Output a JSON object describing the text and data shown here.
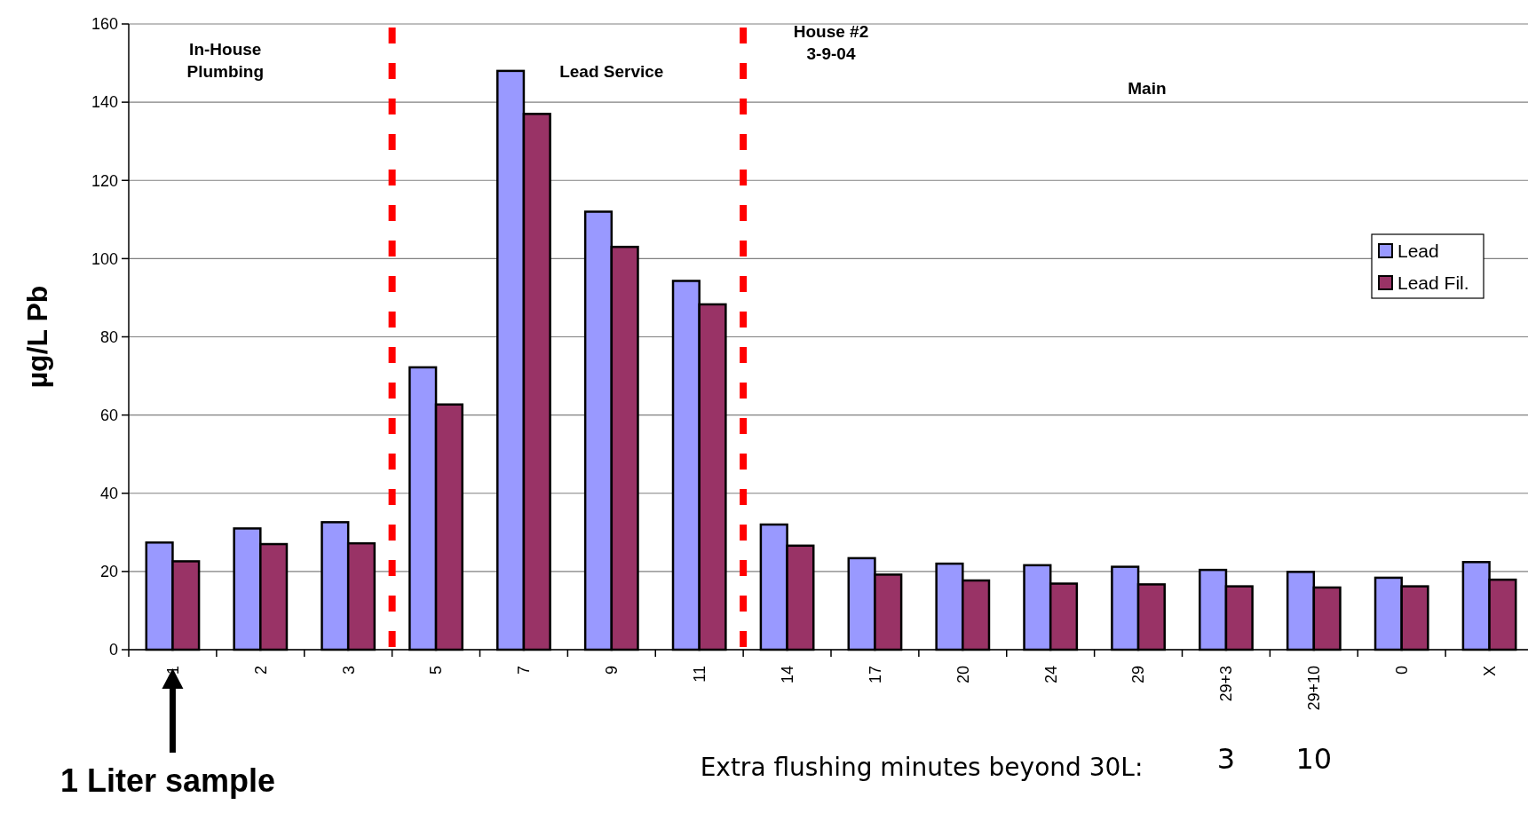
{
  "chart_data": {
    "type": "bar",
    "ylabel": "µg/L Pb",
    "categories": [
      "1",
      "2",
      "3",
      "5",
      "7",
      "9",
      "11",
      "14",
      "17",
      "20",
      "24",
      "29",
      "29+3",
      "29+10",
      "0",
      "X"
    ],
    "series": [
      {
        "name": "Lead",
        "color": "#9999ff",
        "values": [
          27.4,
          31,
          32.6,
          72.2,
          148,
          112,
          94.3,
          32,
          23.4,
          22,
          21.6,
          21.2,
          20.4,
          19.9,
          18.4,
          22.4
        ]
      },
      {
        "name": "Lead Fil.",
        "color": "#993366",
        "values": [
          22.6,
          27,
          27.2,
          62.7,
          137,
          103,
          88.3,
          26.6,
          19.2,
          17.7,
          16.9,
          16.7,
          16.2,
          15.9,
          16.2,
          17.9
        ]
      }
    ],
    "ylim": [
      0,
      160
    ],
    "yticks": [
      0,
      20,
      40,
      60,
      80,
      100,
      120,
      140,
      160
    ],
    "grid": "y",
    "legend": "top right",
    "annotations": [
      "In-House\nPlumbing",
      "Lead Service",
      "House #2\n3-9-04",
      "Main",
      "1 Liter sample",
      "Extra flushing minutes beyond 30L:",
      "3",
      "10"
    ]
  }
}
